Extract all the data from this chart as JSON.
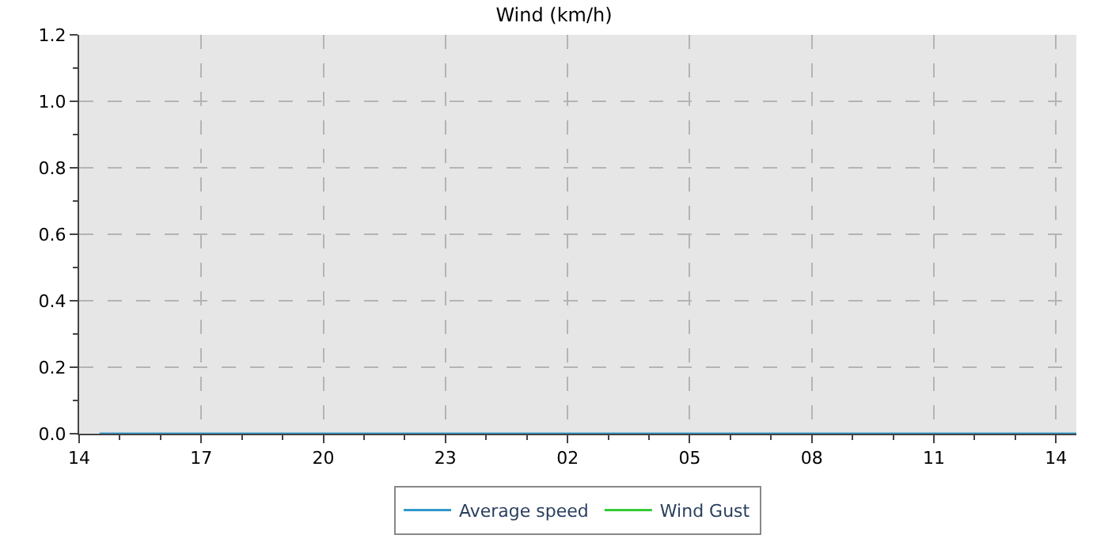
{
  "chart_data": {
    "type": "line",
    "title": "Wind (km/h)",
    "x": [
      "--01-01T14:30",
      "--01-01T18:00",
      "--01-01T22:00",
      "--01-02T02:00",
      "--01-02T06:00",
      "--01-02T10:00",
      "--01-02T14:30"
    ],
    "series": [
      {
        "name": "Average speed",
        "color": "#3399cc",
        "values": [
          0,
          0,
          0,
          0,
          0,
          0,
          0
        ]
      },
      {
        "name": "Wind Gust",
        "color": "#33cc33",
        "values": [
          null,
          null,
          null,
          null,
          null,
          null,
          null
        ]
      }
    ],
    "xlim": [
      "--01-01T14:00",
      "--01-02T14:30"
    ],
    "xticks": [
      {
        "value": "--01-01T14:00",
        "label": "14"
      },
      {
        "value": "--01-01T15:00",
        "label": null
      },
      {
        "value": "--01-01T16:00",
        "label": null
      },
      {
        "value": "--01-01T17:00",
        "label": "17"
      },
      {
        "value": "--01-01T18:00",
        "label": null
      },
      {
        "value": "--01-01T19:00",
        "label": null
      },
      {
        "value": "--01-01T20:00",
        "label": "20"
      },
      {
        "value": "--01-01T21:00",
        "label": null
      },
      {
        "value": "--01-01T22:00",
        "label": null
      },
      {
        "value": "--01-01T23:00",
        "label": "23"
      },
      {
        "value": "--01-02T00:00",
        "label": null
      },
      {
        "value": "--01-02T01:00",
        "label": null
      },
      {
        "value": "--01-02T02:00",
        "label": "02"
      },
      {
        "value": "--01-02T03:00",
        "label": null
      },
      {
        "value": "--01-02T04:00",
        "label": null
      },
      {
        "value": "--01-02T05:00",
        "label": "05"
      },
      {
        "value": "--01-02T06:00",
        "label": null
      },
      {
        "value": "--01-02T07:00",
        "label": null
      },
      {
        "value": "--01-02T08:00",
        "label": "08"
      },
      {
        "value": "--01-02T09:00",
        "label": null
      },
      {
        "value": "--01-02T10:00",
        "label": null
      },
      {
        "value": "--01-02T11:00",
        "label": "11"
      },
      {
        "value": "--01-02T12:00",
        "label": null
      },
      {
        "value": "--01-02T13:00",
        "label": null
      },
      {
        "value": "--01-02T14:00",
        "label": "14"
      }
    ],
    "ylim": [
      0,
      1.2
    ],
    "yticks": [
      {
        "value": 0,
        "label": "0.0"
      },
      {
        "value": 0.1,
        "label": null
      },
      {
        "value": 0.2,
        "label": "0.2"
      },
      {
        "value": 0.3,
        "label": null
      },
      {
        "value": 0.4,
        "label": "0.4"
      },
      {
        "value": 0.5,
        "label": null
      },
      {
        "value": 0.6,
        "label": "0.6"
      },
      {
        "value": 0.7,
        "label": null
      },
      {
        "value": 0.8,
        "label": "0.8"
      },
      {
        "value": 0.9,
        "label": null
      },
      {
        "value": 1.0,
        "label": "1.0"
      },
      {
        "value": 1.1,
        "label": null
      },
      {
        "value": 1.2,
        "label": "1.2"
      }
    ],
    "grid": true,
    "legend": "bottom",
    "line_style": "solid",
    "marker": "none"
  }
}
